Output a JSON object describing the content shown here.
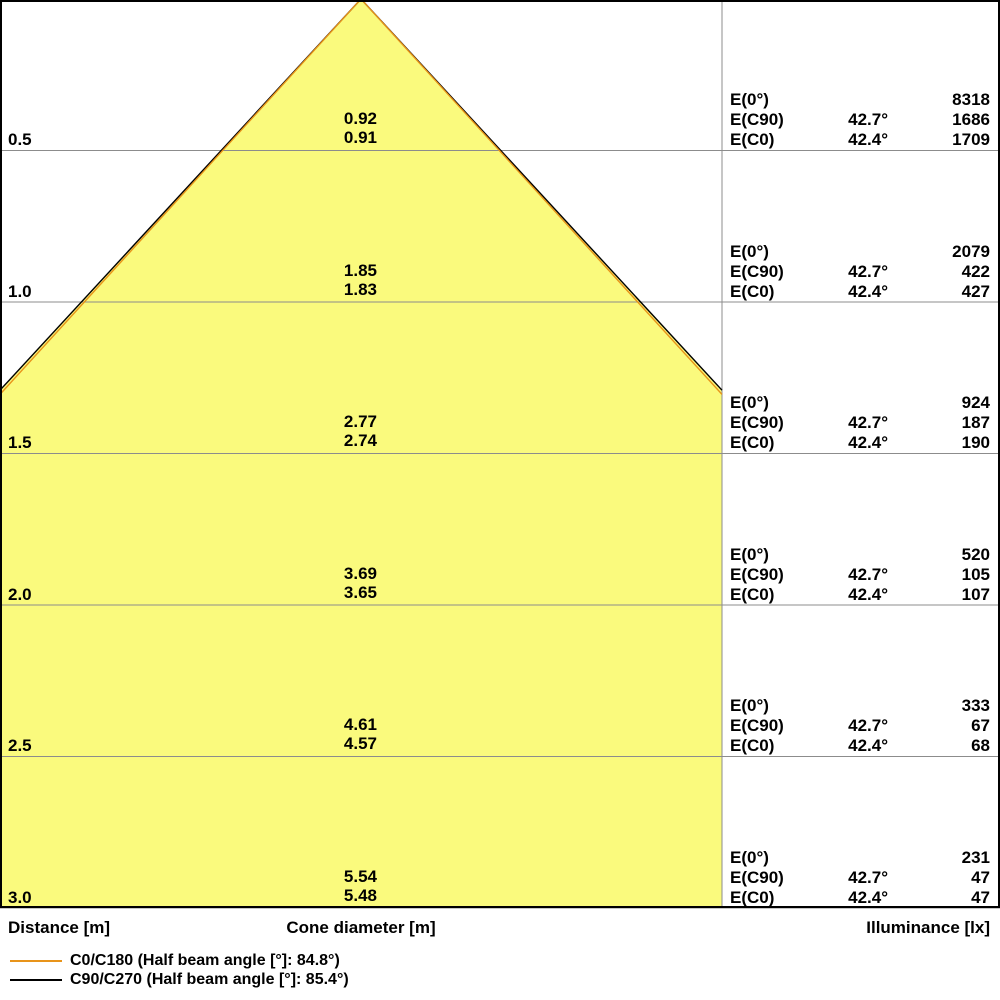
{
  "chart_data": {
    "type": "illuminance_cone_diagram",
    "distance_axis_label": "Distance [m]",
    "cone_axis_label": "Cone diameter [m]",
    "illuminance_axis_label": "Illuminance [lx]",
    "distances_m": [
      0.5,
      1.0,
      1.5,
      2.0,
      2.5,
      3.0
    ],
    "series": [
      {
        "name": "C0/C180",
        "half_beam_angle_deg": 84.8,
        "angle_label": "42.4°",
        "color": "#E8941A",
        "cone_diameters_m": [
          0.91,
          1.83,
          2.74,
          3.65,
          4.57,
          5.48
        ],
        "illuminance_lx": [
          1709,
          427,
          190,
          107,
          68,
          47
        ]
      },
      {
        "name": "C90/C270",
        "half_beam_angle_deg": 85.4,
        "angle_label": "42.7°",
        "color": "#000000",
        "cone_diameters_m": [
          0.92,
          1.85,
          2.77,
          3.69,
          4.61,
          5.54
        ],
        "illuminance_lx": [
          1686,
          422,
          187,
          105,
          67,
          47
        ]
      }
    ],
    "e0_lx": [
      8318,
      2079,
      924,
      520,
      333,
      231
    ],
    "fill_color": "#FAFA7D",
    "grid_color": "#8c8c8c",
    "border_color": "#000000"
  },
  "labels": {
    "e0": "E(0°)",
    "ec90": "E(C90)",
    "ec0": "E(C0)",
    "angle_c90": "42.7°",
    "angle_c0": "42.4°"
  },
  "rows": [
    {
      "distance": "0.5",
      "cone_top": "0.92",
      "cone_bottom": "0.91",
      "e0": "8318",
      "ec90": "1686",
      "ec0": "1709"
    },
    {
      "distance": "1.0",
      "cone_top": "1.85",
      "cone_bottom": "1.83",
      "e0": "2079",
      "ec90": "422",
      "ec0": "427"
    },
    {
      "distance": "1.5",
      "cone_top": "2.77",
      "cone_bottom": "2.74",
      "e0": "924",
      "ec90": "187",
      "ec0": "190"
    },
    {
      "distance": "2.0",
      "cone_top": "3.69",
      "cone_bottom": "3.65",
      "e0": "520",
      "ec90": "105",
      "ec0": "107"
    },
    {
      "distance": "2.5",
      "cone_top": "4.61",
      "cone_bottom": "4.57",
      "e0": "333",
      "ec90": "67",
      "ec0": "68"
    },
    {
      "distance": "3.0",
      "cone_top": "5.54",
      "cone_bottom": "5.48",
      "e0": "231",
      "ec90": "47",
      "ec0": "47"
    }
  ],
  "footer": {
    "distance": "Distance [m]",
    "cone_diameter": "Cone diameter [m]",
    "illuminance": "Illuminance [lx]"
  },
  "legend": [
    {
      "label": "C0/C180 (Half beam angle [°]: 84.8°)",
      "color": "#E8941A"
    },
    {
      "label": "C90/C270 (Half beam angle [°]: 85.4°)",
      "color": "#000000"
    }
  ]
}
